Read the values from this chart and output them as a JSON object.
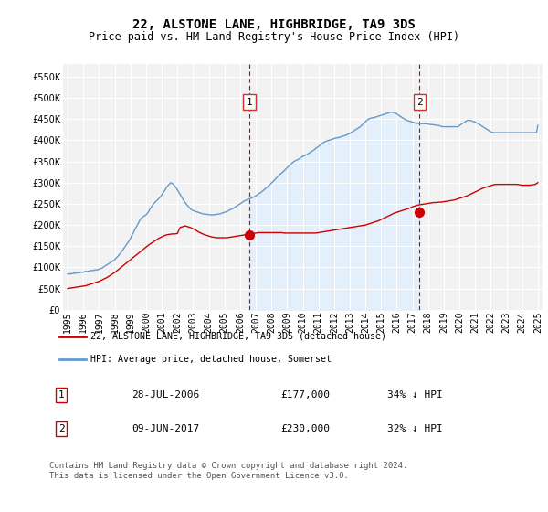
{
  "title": "22, ALSTONE LANE, HIGHBRIDGE, TA9 3DS",
  "subtitle": "Price paid vs. HM Land Registry's House Price Index (HPI)",
  "title_fontsize": 10,
  "subtitle_fontsize": 8.5,
  "ylim": [
    0,
    580000
  ],
  "yticks": [
    0,
    50000,
    100000,
    150000,
    200000,
    250000,
    300000,
    350000,
    400000,
    450000,
    500000,
    550000
  ],
  "background_color": "#ffffff",
  "plot_bg_color": "#f2f2f2",
  "grid_color": "#ffffff",
  "hpi_color": "#6699cc",
  "hpi_fill_color": "#ddeeff",
  "price_color": "#cc0000",
  "marker1_x": 11.58,
  "marker2_x": 22.45,
  "marker1_price": 177000,
  "marker2_price": 230000,
  "legend_label_red": "22, ALSTONE LANE, HIGHBRIDGE, TA9 3DS (detached house)",
  "legend_label_blue": "HPI: Average price, detached house, Somerset",
  "annotation1": "28-JUL-2006",
  "annotation1_price": "£177,000",
  "annotation1_hpi": "34% ↓ HPI",
  "annotation2": "09-JUN-2017",
  "annotation2_price": "£230,000",
  "annotation2_hpi": "32% ↓ HPI",
  "footer": "Contains HM Land Registry data © Crown copyright and database right 2024.\nThis data is licensed under the Open Government Licence v3.0.",
  "x_labels": [
    "1995",
    "1996",
    "1997",
    "1998",
    "1999",
    "2000",
    "2001",
    "2002",
    "2003",
    "2004",
    "2005",
    "2006",
    "2007",
    "2008",
    "2009",
    "2010",
    "2011",
    "2012",
    "2013",
    "2014",
    "2015",
    "2016",
    "2017",
    "2018",
    "2019",
    "2020",
    "2021",
    "2022",
    "2023",
    "2024",
    "2025"
  ],
  "hpi_x": [
    0.0,
    0.08,
    0.17,
    0.25,
    0.33,
    0.42,
    0.5,
    0.58,
    0.67,
    0.75,
    0.83,
    0.92,
    1.0,
    1.08,
    1.17,
    1.25,
    1.33,
    1.42,
    1.5,
    1.58,
    1.67,
    1.75,
    1.83,
    1.92,
    2.0,
    2.08,
    2.17,
    2.25,
    2.33,
    2.42,
    2.5,
    2.58,
    2.67,
    2.75,
    2.83,
    2.92,
    3.0,
    3.08,
    3.17,
    3.25,
    3.33,
    3.42,
    3.5,
    3.58,
    3.67,
    3.75,
    3.83,
    3.92,
    4.0,
    4.08,
    4.17,
    4.25,
    4.33,
    4.42,
    4.5,
    4.58,
    4.67,
    4.75,
    4.83,
    4.92,
    5.0,
    5.08,
    5.17,
    5.25,
    5.33,
    5.42,
    5.5,
    5.58,
    5.67,
    5.75,
    5.83,
    5.92,
    6.0,
    6.08,
    6.17,
    6.25,
    6.33,
    6.42,
    6.5,
    6.58,
    6.67,
    6.75,
    6.83,
    6.92,
    7.0,
    7.08,
    7.17,
    7.25,
    7.33,
    7.42,
    7.5,
    7.58,
    7.67,
    7.75,
    7.83,
    7.92,
    8.0,
    8.08,
    8.17,
    8.25,
    8.33,
    8.42,
    8.5,
    8.58,
    8.67,
    8.75,
    8.83,
    8.92,
    9.0,
    9.08,
    9.17,
    9.25,
    9.33,
    9.42,
    9.5,
    9.58,
    9.67,
    9.75,
    9.83,
    9.92,
    10.0,
    10.08,
    10.17,
    10.25,
    10.33,
    10.42,
    10.5,
    10.58,
    10.67,
    10.75,
    10.83,
    10.92,
    11.0,
    11.08,
    11.17,
    11.25,
    11.33,
    11.42,
    11.5,
    11.58,
    11.67,
    11.75,
    11.83,
    11.92,
    12.0,
    12.08,
    12.17,
    12.25,
    12.33,
    12.42,
    12.5,
    12.58,
    12.67,
    12.75,
    12.83,
    12.92,
    13.0,
    13.08,
    13.17,
    13.25,
    13.33,
    13.42,
    13.5,
    13.58,
    13.67,
    13.75,
    13.83,
    13.92,
    14.0,
    14.08,
    14.17,
    14.25,
    14.33,
    14.42,
    14.5,
    14.58,
    14.67,
    14.75,
    14.83,
    14.92,
    15.0,
    15.08,
    15.17,
    15.25,
    15.33,
    15.42,
    15.5,
    15.58,
    15.67,
    15.75,
    15.83,
    15.92,
    16.0,
    16.08,
    16.17,
    16.25,
    16.33,
    16.42,
    16.5,
    16.58,
    16.67,
    16.75,
    16.83,
    16.92,
    17.0,
    17.08,
    17.17,
    17.25,
    17.33,
    17.42,
    17.5,
    17.58,
    17.67,
    17.75,
    17.83,
    17.92,
    18.0,
    18.08,
    18.17,
    18.25,
    18.33,
    18.42,
    18.5,
    18.58,
    18.67,
    18.75,
    18.83,
    18.92,
    19.0,
    19.08,
    19.17,
    19.25,
    19.33,
    19.42,
    19.5,
    19.58,
    19.67,
    19.75,
    19.83,
    19.92,
    20.0,
    20.08,
    20.17,
    20.25,
    20.33,
    20.42,
    20.5,
    20.58,
    20.67,
    20.75,
    20.83,
    20.92,
    21.0,
    21.08,
    21.17,
    21.25,
    21.33,
    21.42,
    21.5,
    21.58,
    21.67,
    21.75,
    21.83,
    21.92,
    22.0,
    22.08,
    22.17,
    22.25,
    22.33,
    22.42,
    22.5,
    22.58,
    22.67,
    22.75,
    22.83,
    22.92,
    23.0,
    23.08,
    23.17,
    23.25,
    23.33,
    23.42,
    23.5,
    23.58,
    23.67,
    23.75,
    23.83,
    23.92,
    24.0,
    24.08,
    24.17,
    24.25,
    24.33,
    24.42,
    24.5,
    24.58,
    24.67,
    24.75,
    24.83,
    24.92,
    25.0,
    25.08,
    25.17,
    25.25,
    25.33,
    25.42,
    25.5,
    25.58,
    25.67,
    25.75,
    25.83,
    25.92,
    26.0,
    26.08,
    26.17,
    26.25,
    26.33,
    26.42,
    26.5,
    26.58,
    26.67,
    26.75,
    26.83,
    26.92,
    27.0,
    27.08,
    27.17,
    27.25,
    27.33,
    27.42,
    27.5,
    27.58,
    27.67,
    27.75,
    27.83,
    27.92,
    28.0,
    28.08,
    28.17,
    28.25,
    28.33,
    28.42,
    28.5,
    28.58,
    28.67,
    28.75,
    28.83,
    28.92,
    29.0,
    29.08,
    29.17,
    29.25,
    29.33,
    29.42,
    29.5,
    29.58,
    29.67,
    29.75,
    29.83,
    29.92,
    30.0
  ],
  "hpi_y": [
    84000,
    85000,
    84000,
    86000,
    85000,
    87000,
    86000,
    87000,
    88000,
    87000,
    89000,
    88000,
    89000,
    90000,
    91000,
    90000,
    91000,
    92000,
    93000,
    92000,
    94000,
    93000,
    95000,
    94000,
    96000,
    97000,
    98000,
    100000,
    102000,
    104000,
    106000,
    108000,
    110000,
    112000,
    114000,
    116000,
    118000,
    122000,
    125000,
    128000,
    132000,
    136000,
    140000,
    145000,
    149000,
    154000,
    158000,
    163000,
    168000,
    175000,
    180000,
    186000,
    193000,
    198000,
    204000,
    210000,
    215000,
    218000,
    220000,
    222000,
    224000,
    228000,
    232000,
    238000,
    242000,
    247000,
    251000,
    254000,
    257000,
    260000,
    263000,
    267000,
    271000,
    276000,
    280000,
    285000,
    290000,
    294000,
    297000,
    300000,
    298000,
    296000,
    292000,
    288000,
    283000,
    278000,
    272000,
    267000,
    262000,
    257000,
    253000,
    249000,
    245000,
    242000,
    238000,
    236000,
    234000,
    233000,
    232000,
    231000,
    230000,
    229000,
    228000,
    227000,
    226000,
    226000,
    225000,
    225000,
    225000,
    224000,
    224000,
    224000,
    224000,
    225000,
    225000,
    226000,
    226000,
    227000,
    228000,
    229000,
    230000,
    231000,
    232000,
    234000,
    235000,
    237000,
    238000,
    240000,
    242000,
    244000,
    246000,
    248000,
    250000,
    252000,
    254000,
    256000,
    258000,
    259000,
    261000,
    262000,
    263000,
    264000,
    266000,
    267000,
    269000,
    271000,
    273000,
    275000,
    277000,
    280000,
    282000,
    285000,
    287000,
    290000,
    293000,
    296000,
    299000,
    302000,
    305000,
    308000,
    312000,
    315000,
    318000,
    321000,
    323000,
    326000,
    329000,
    332000,
    335000,
    338000,
    341000,
    344000,
    347000,
    349000,
    351000,
    353000,
    354000,
    356000,
    358000,
    360000,
    362000,
    363000,
    365000,
    366000,
    368000,
    370000,
    372000,
    374000,
    376000,
    378000,
    381000,
    383000,
    385000,
    388000,
    390000,
    393000,
    395000,
    397000,
    398000,
    399000,
    400000,
    401000,
    402000,
    403000,
    404000,
    405000,
    406000,
    406000,
    407000,
    408000,
    409000,
    410000,
    411000,
    412000,
    413000,
    415000,
    416000,
    418000,
    420000,
    422000,
    424000,
    426000,
    428000,
    430000,
    432000,
    435000,
    438000,
    441000,
    444000,
    447000,
    449000,
    451000,
    452000,
    453000,
    453000,
    454000,
    455000,
    456000,
    457000,
    458000,
    459000,
    460000,
    461000,
    462000,
    463000,
    464000,
    465000,
    466000,
    466000,
    466000,
    465000,
    464000,
    462000,
    460000,
    458000,
    456000,
    454000,
    452000,
    450000,
    448000,
    447000,
    446000,
    445000,
    444000,
    443000,
    442000,
    441000,
    440000,
    440000,
    439000,
    439000,
    439000,
    439000,
    439000,
    439000,
    439000,
    438000,
    438000,
    437000,
    437000,
    437000,
    436000,
    436000,
    435000,
    435000,
    434000,
    433000,
    432000,
    432000,
    432000,
    432000,
    432000,
    432000,
    432000,
    432000,
    432000,
    432000,
    432000,
    432000,
    432000,
    435000,
    437000,
    439000,
    441000,
    443000,
    445000,
    447000,
    447000,
    447000,
    446000,
    445000,
    444000,
    443000,
    441000,
    440000,
    438000,
    436000,
    434000,
    432000,
    430000,
    428000,
    426000,
    424000,
    422000,
    420000,
    419000,
    418000,
    418000,
    418000,
    418000,
    418000,
    418000,
    418000,
    418000,
    418000,
    418000,
    418000,
    418000,
    418000,
    418000,
    418000,
    418000,
    418000,
    418000,
    418000,
    418000,
    418000,
    418000,
    418000,
    418000,
    418000,
    418000,
    418000,
    418000,
    418000,
    418000,
    418000,
    418000,
    418000,
    418000,
    435000
  ],
  "price_x": [
    0.0,
    0.17,
    0.33,
    0.5,
    0.67,
    0.83,
    1.0,
    1.17,
    1.33,
    1.5,
    1.67,
    1.83,
    2.0,
    2.17,
    2.33,
    2.5,
    2.67,
    2.83,
    3.0,
    3.17,
    3.33,
    3.5,
    3.67,
    3.83,
    4.0,
    4.17,
    4.33,
    4.5,
    4.67,
    4.83,
    5.0,
    5.17,
    5.33,
    5.5,
    5.67,
    5.83,
    6.0,
    6.17,
    6.33,
    6.5,
    6.67,
    6.83,
    7.0,
    7.17,
    7.33,
    7.5,
    7.67,
    7.83,
    8.0,
    8.17,
    8.33,
    8.5,
    8.67,
    8.83,
    9.0,
    9.17,
    9.33,
    9.5,
    9.67,
    9.83,
    10.0,
    10.17,
    10.33,
    10.5,
    10.67,
    10.83,
    11.0,
    11.17,
    11.33,
    11.5,
    11.67,
    11.83,
    12.0,
    12.17,
    12.33,
    12.5,
    12.67,
    12.83,
    13.0,
    13.17,
    13.33,
    13.5,
    13.67,
    13.83,
    14.0,
    14.17,
    14.33,
    14.5,
    14.67,
    14.83,
    15.0,
    15.17,
    15.33,
    15.5,
    15.67,
    15.83,
    16.0,
    16.17,
    16.33,
    16.5,
    16.67,
    16.83,
    17.0,
    17.17,
    17.33,
    17.5,
    17.67,
    17.83,
    18.0,
    18.17,
    18.33,
    18.5,
    18.67,
    18.83,
    19.0,
    19.17,
    19.33,
    19.5,
    19.67,
    19.83,
    20.0,
    20.17,
    20.33,
    20.5,
    20.67,
    20.83,
    21.0,
    21.17,
    21.33,
    21.5,
    21.67,
    21.83,
    22.0,
    22.17,
    22.33,
    22.5,
    22.67,
    22.83,
    23.0,
    23.17,
    23.33,
    23.5,
    23.67,
    23.83,
    24.0,
    24.17,
    24.33,
    24.5,
    24.67,
    24.83,
    25.0,
    25.17,
    25.33,
    25.5,
    25.67,
    25.83,
    26.0,
    26.17,
    26.33,
    26.5,
    26.67,
    26.83,
    27.0,
    27.17,
    27.33,
    27.5,
    27.67,
    27.83,
    28.0,
    28.17,
    28.33,
    28.5,
    28.67,
    28.83,
    29.0,
    29.17,
    29.33,
    29.5,
    29.67,
    29.83,
    30.0
  ],
  "price_y": [
    50000,
    51000,
    52000,
    53000,
    54000,
    55000,
    56000,
    57000,
    59000,
    61000,
    63000,
    65000,
    67000,
    70000,
    73000,
    76000,
    80000,
    84000,
    88000,
    93000,
    98000,
    103000,
    108000,
    113000,
    118000,
    123000,
    128000,
    133000,
    138000,
    143000,
    148000,
    153000,
    157000,
    161000,
    165000,
    169000,
    172000,
    175000,
    177000,
    178000,
    179000,
    179000,
    180000,
    194000,
    196000,
    198000,
    196000,
    194000,
    191000,
    188000,
    184000,
    181000,
    178000,
    176000,
    174000,
    172000,
    171000,
    170000,
    170000,
    170000,
    170000,
    170000,
    171000,
    172000,
    173000,
    174000,
    175000,
    176000,
    177000,
    178000,
    179000,
    180000,
    181000,
    182000,
    182000,
    182000,
    182000,
    182000,
    182000,
    182000,
    182000,
    182000,
    182000,
    181000,
    181000,
    181000,
    181000,
    181000,
    181000,
    181000,
    181000,
    181000,
    181000,
    181000,
    181000,
    181000,
    182000,
    183000,
    184000,
    185000,
    186000,
    187000,
    188000,
    189000,
    190000,
    191000,
    192000,
    193000,
    194000,
    195000,
    196000,
    197000,
    198000,
    199000,
    200000,
    202000,
    204000,
    206000,
    208000,
    210000,
    213000,
    216000,
    219000,
    222000,
    225000,
    228000,
    230000,
    232000,
    234000,
    236000,
    238000,
    240000,
    243000,
    245000,
    247000,
    248000,
    249000,
    250000,
    251000,
    252000,
    253000,
    253000,
    254000,
    254000,
    255000,
    256000,
    257000,
    258000,
    259000,
    261000,
    263000,
    265000,
    267000,
    269000,
    272000,
    275000,
    278000,
    281000,
    284000,
    287000,
    289000,
    291000,
    293000,
    295000,
    296000,
    296000,
    296000,
    296000,
    296000,
    296000,
    296000,
    296000,
    296000,
    295000,
    294000,
    294000,
    294000,
    294000,
    295000,
    296000,
    300000
  ]
}
